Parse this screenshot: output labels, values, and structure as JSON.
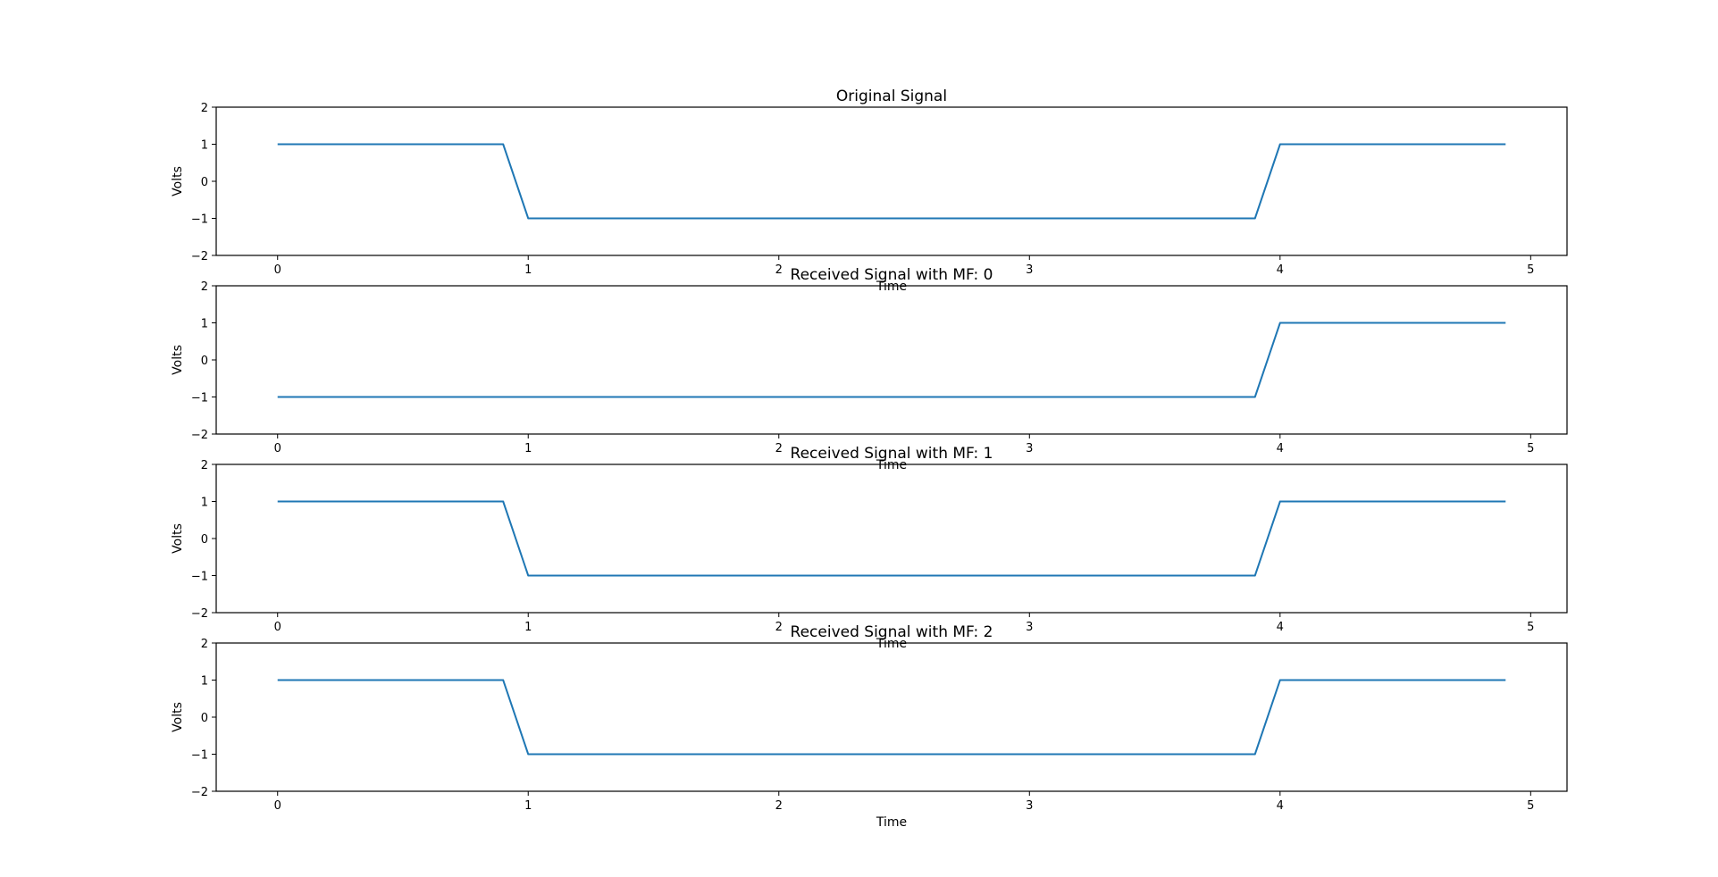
{
  "figure": {
    "line_color": "#1f77b4",
    "axis_color": "#000000",
    "background": "#ffffff"
  },
  "chart_data": [
    {
      "type": "line",
      "title": "Original Signal",
      "xlabel": "Time",
      "ylabel": "Volts",
      "xlim": [
        -0.245,
        5.145
      ],
      "ylim": [
        -2,
        2
      ],
      "xticks": [
        0,
        1,
        2,
        3,
        4,
        5
      ],
      "yticks": [
        -2,
        -1,
        0,
        1,
        2
      ],
      "grid": false,
      "series": [
        {
          "name": "signal",
          "x": [
            0,
            0.9,
            1.0,
            3.9,
            4.0,
            4.9
          ],
          "y": [
            1,
            1,
            -1,
            -1,
            1,
            1
          ]
        }
      ]
    },
    {
      "type": "line",
      "title": "Received Signal with MF: 0",
      "xlabel": "Time",
      "ylabel": "Volts",
      "xlim": [
        -0.245,
        5.145
      ],
      "ylim": [
        -2,
        2
      ],
      "xticks": [
        0,
        1,
        2,
        3,
        4,
        5
      ],
      "yticks": [
        -2,
        -1,
        0,
        1,
        2
      ],
      "grid": false,
      "series": [
        {
          "name": "signal",
          "x": [
            0,
            3.9,
            4.0,
            4.9
          ],
          "y": [
            -1,
            -1,
            1,
            1
          ]
        }
      ]
    },
    {
      "type": "line",
      "title": "Received Signal with MF: 1",
      "xlabel": "Time",
      "ylabel": "Volts",
      "xlim": [
        -0.245,
        5.145
      ],
      "ylim": [
        -2,
        2
      ],
      "xticks": [
        0,
        1,
        2,
        3,
        4,
        5
      ],
      "yticks": [
        -2,
        -1,
        0,
        1,
        2
      ],
      "grid": false,
      "series": [
        {
          "name": "signal",
          "x": [
            0,
            0.9,
            1.0,
            3.9,
            4.0,
            4.9
          ],
          "y": [
            1,
            1,
            -1,
            -1,
            1,
            1
          ]
        }
      ]
    },
    {
      "type": "line",
      "title": "Received Signal with MF: 2",
      "xlabel": "Time",
      "ylabel": "Volts",
      "xlim": [
        -0.245,
        5.145
      ],
      "ylim": [
        -2,
        2
      ],
      "xticks": [
        0,
        1,
        2,
        3,
        4,
        5
      ],
      "yticks": [
        -2,
        -1,
        0,
        1,
        2
      ],
      "grid": false,
      "series": [
        {
          "name": "signal",
          "x": [
            0,
            0.9,
            1.0,
            3.9,
            4.0,
            4.9
          ],
          "y": [
            1,
            1,
            -1,
            -1,
            1,
            1
          ]
        }
      ]
    }
  ]
}
